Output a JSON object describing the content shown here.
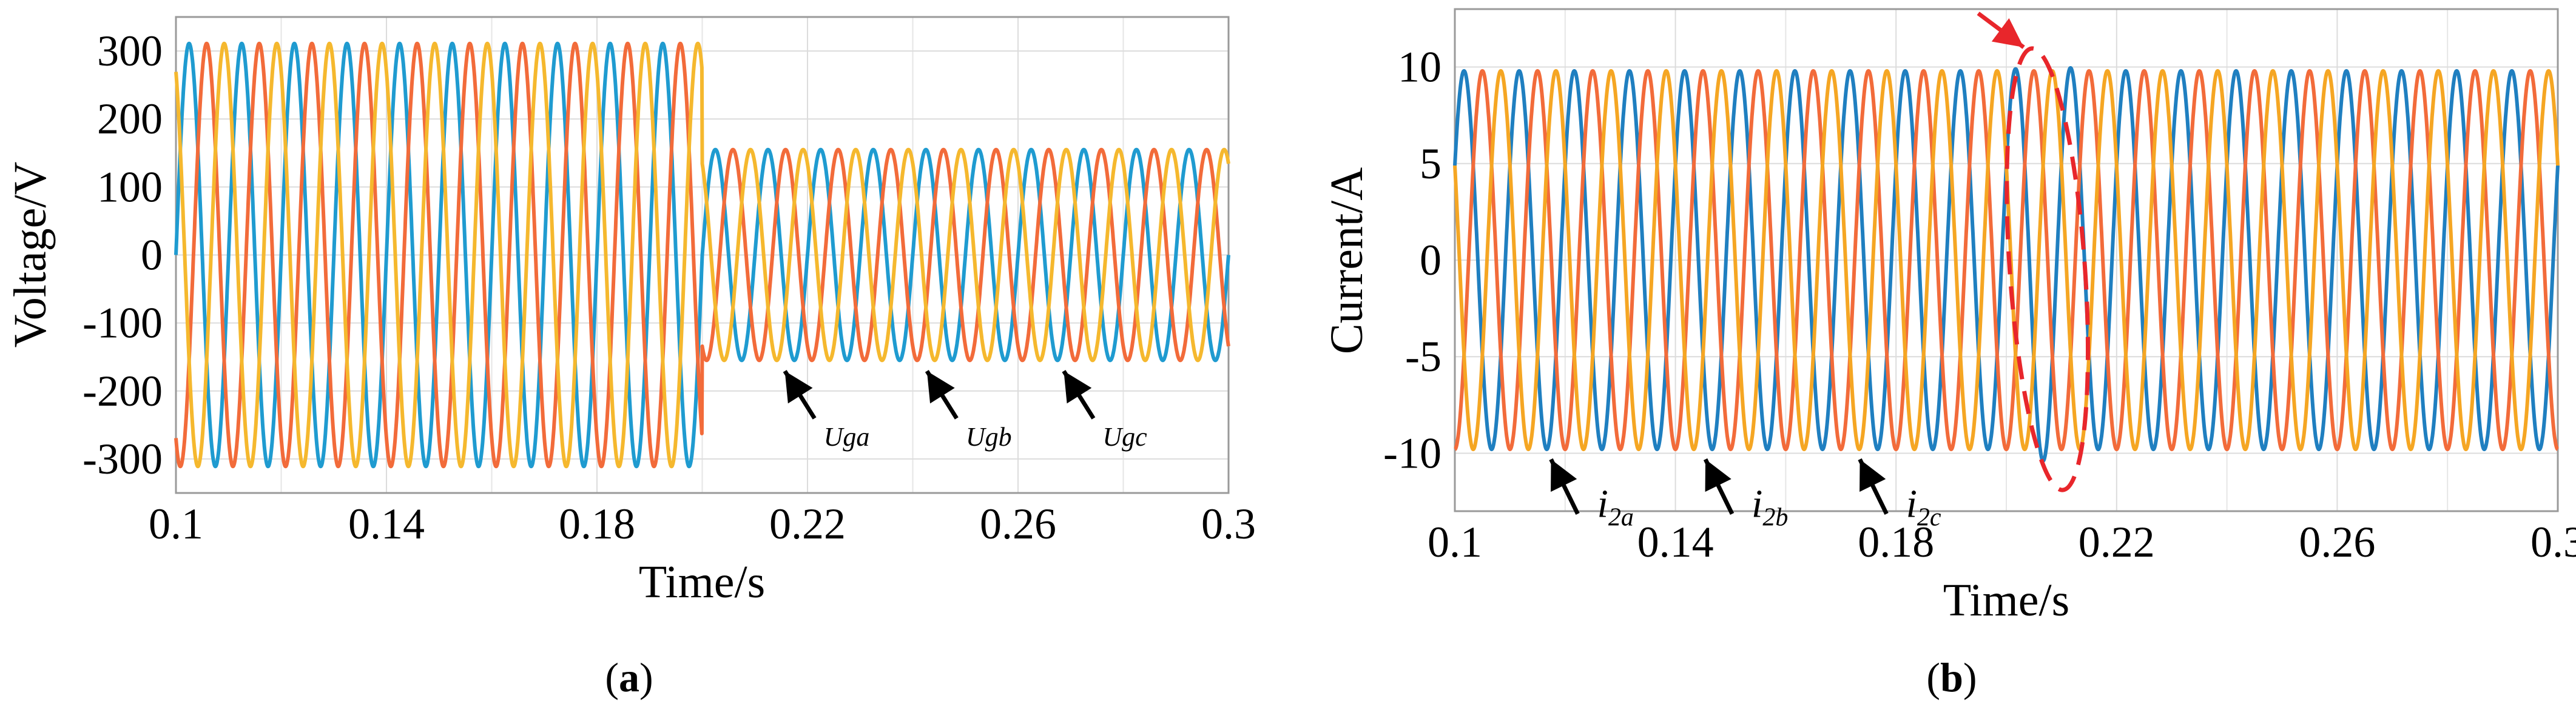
{
  "chart_data": [
    {
      "id": "a",
      "type": "line",
      "caption_open": "(",
      "caption_letter": "a",
      "caption_close": ")",
      "xlabel": "Time/s",
      "ylabel": "Voltage/V",
      "xlim": [
        0.1,
        0.3
      ],
      "ylim": [
        -350,
        350
      ],
      "xticks": [
        "0.1",
        "0.14",
        "0.18",
        "0.22",
        "0.26",
        "0.3"
      ],
      "xtick_values": [
        0.1,
        0.14,
        0.18,
        0.22,
        0.26,
        0.3
      ],
      "yticks": [
        "300",
        "200",
        "100",
        "0",
        "-100",
        "-200",
        "-300"
      ],
      "ytick_values": [
        300,
        200,
        100,
        0,
        -100,
        -200,
        -300
      ],
      "grid": true,
      "frequency_hz": 100,
      "step_time_s": 0.2,
      "series": [
        {
          "name": "Uga",
          "color": "#1f9bd0",
          "amplitude_before": 311,
          "amplitude_after": 155,
          "phase_deg": 0
        },
        {
          "name": "Ugb",
          "color": "#f26b3a",
          "amplitude_before": 311,
          "amplitude_after": 155,
          "phase_deg": -120
        },
        {
          "name": "Ugc",
          "color": "#f5b82e",
          "amplitude_before": 311,
          "amplitude_after": 155,
          "phase_deg": 120
        }
      ],
      "annotations": [
        {
          "label": "Uga",
          "x": 0.215,
          "y": -160
        },
        {
          "label": "Ugb",
          "x": 0.242,
          "y": -160
        },
        {
          "label": "Ugc",
          "x": 0.268,
          "y": -160
        }
      ]
    },
    {
      "id": "b",
      "type": "line",
      "caption_open": "(",
      "caption_letter": "b",
      "caption_close": ")",
      "xlabel": "Time/s",
      "ylabel": "Current/A",
      "xlim": [
        0.1,
        0.3
      ],
      "ylim": [
        -13,
        13
      ],
      "xticks": [
        "0.1",
        "0.14",
        "0.18",
        "0.22",
        "0.26",
        "0.3"
      ],
      "xtick_values": [
        0.1,
        0.14,
        0.18,
        0.22,
        0.26,
        0.3
      ],
      "yticks": [
        "10",
        "5",
        "0",
        "-5",
        "-10"
      ],
      "ytick_values": [
        10,
        5,
        0,
        -5,
        -10
      ],
      "grid": true,
      "frequency_hz": 100,
      "highlight_time_s": 0.207,
      "series": [
        {
          "name": "i2a",
          "color": "#1f7fc0",
          "amplitude": 9.8,
          "phase_deg": 30
        },
        {
          "name": "i2b",
          "color": "#f26b3a",
          "amplitude": 9.8,
          "phase_deg": -90
        },
        {
          "name": "i2c",
          "color": "#f5a623",
          "amplitude": 9.8,
          "phase_deg": 150
        }
      ],
      "annotations": [
        {
          "label_main": "i",
          "label_sub": "2a",
          "x": 0.117,
          "y": -10
        },
        {
          "label_main": "i",
          "label_sub": "2b",
          "x": 0.145,
          "y": -10
        },
        {
          "label_main": "i",
          "label_sub": "2c",
          "x": 0.173,
          "y": -10
        }
      ],
      "highlight_color": "#e8262b"
    }
  ]
}
